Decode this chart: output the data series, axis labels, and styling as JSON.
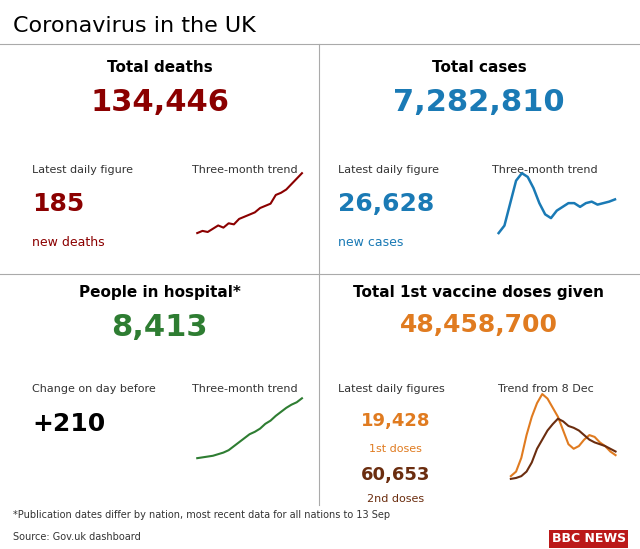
{
  "title": "Coronavirus in the UK",
  "bg_color": "#ffffff",
  "title_color": "#000000",
  "divider_color": "#cccccc",
  "quad_titles": [
    "Total deaths",
    "Total cases",
    "People in hospital*",
    "Total 1st vaccine doses given"
  ],
  "quad_title_color": "#000000",
  "total_deaths": "134,446",
  "total_deaths_color": "#8b0000",
  "total_cases": "7,282,810",
  "total_cases_color": "#1a7ab5",
  "total_hospital": "8,413",
  "total_hospital_color": "#2e7d32",
  "total_vaccine": "48,458,700",
  "total_vaccine_color": "#e07b20",
  "deaths_daily_label": "Latest daily figure",
  "deaths_trend_label": "Three-month trend",
  "deaths_daily_value": "185",
  "deaths_daily_sub": "new deaths",
  "deaths_daily_color": "#8b0000",
  "cases_daily_label": "Latest daily figure",
  "cases_trend_label": "Three-month trend",
  "cases_daily_value": "26,628",
  "cases_daily_sub": "new cases",
  "cases_daily_color": "#1a7ab5",
  "hospital_change_label": "Change on day before",
  "hospital_trend_label": "Three-month trend",
  "hospital_change_value": "+210",
  "hospital_change_color": "#000000",
  "vaccine_daily_label": "Latest daily figures",
  "vaccine_trend_label": "Trend from 8 Dec",
  "vaccine_dose1_value": "19,428",
  "vaccine_dose1_sub": "1st doses",
  "vaccine_dose1_color": "#e07b20",
  "vaccine_dose2_value": "60,653",
  "vaccine_dose2_sub": "2nd doses",
  "vaccine_dose2_color": "#6b2d0f",
  "footnote": "*Publication dates differ by nation, most recent data for all nations to 13 Sep",
  "source": "Source: Gov.uk dashboard",
  "bbc_label": "BBC NEWS",
  "bbc_bg_color": "#bb1919",
  "bbc_text_color": "#ffffff",
  "deaths_trend_x": [
    0,
    1,
    2,
    3,
    4,
    5,
    6,
    7,
    8,
    9,
    10,
    11,
    12,
    13,
    14,
    15,
    16,
    17,
    18,
    19,
    20
  ],
  "deaths_trend_y": [
    0.05,
    0.07,
    0.06,
    0.09,
    0.12,
    0.1,
    0.14,
    0.13,
    0.18,
    0.2,
    0.22,
    0.24,
    0.28,
    0.3,
    0.32,
    0.4,
    0.42,
    0.45,
    0.5,
    0.55,
    0.6
  ],
  "deaths_trend_color": "#8b0000",
  "cases_trend_x": [
    0,
    1,
    2,
    3,
    4,
    5,
    6,
    7,
    8,
    9,
    10,
    11,
    12,
    13,
    14,
    15,
    16,
    17,
    18,
    19,
    20
  ],
  "cases_trend_y": [
    0.1,
    0.2,
    0.5,
    0.8,
    0.9,
    0.85,
    0.7,
    0.5,
    0.35,
    0.3,
    0.4,
    0.45,
    0.5,
    0.5,
    0.45,
    0.5,
    0.52,
    0.48,
    0.5,
    0.52,
    0.55
  ],
  "cases_trend_color": "#1a7ab5",
  "hospital_trend_x": [
    0,
    1,
    2,
    3,
    4,
    5,
    6,
    7,
    8,
    9,
    10,
    11,
    12,
    13,
    14,
    15,
    16,
    17,
    18,
    19,
    20
  ],
  "hospital_trend_y": [
    0.05,
    0.06,
    0.07,
    0.08,
    0.1,
    0.12,
    0.15,
    0.2,
    0.25,
    0.3,
    0.35,
    0.38,
    0.42,
    0.48,
    0.52,
    0.58,
    0.63,
    0.68,
    0.72,
    0.75,
    0.8
  ],
  "hospital_trend_color": "#2e7d32",
  "vaccine_trend1_x": [
    0,
    1,
    2,
    3,
    4,
    5,
    6,
    7,
    8,
    9,
    10,
    11,
    12,
    13,
    14,
    15,
    16,
    17,
    18,
    19,
    20
  ],
  "vaccine_trend1_y": [
    0.05,
    0.1,
    0.25,
    0.5,
    0.7,
    0.85,
    0.95,
    0.9,
    0.8,
    0.7,
    0.55,
    0.4,
    0.35,
    0.38,
    0.45,
    0.5,
    0.48,
    0.42,
    0.38,
    0.32,
    0.28
  ],
  "vaccine_trend1_color": "#e07b20",
  "vaccine_trend2_x": [
    0,
    1,
    2,
    3,
    4,
    5,
    6,
    7,
    8,
    9,
    10,
    11,
    12,
    13,
    14,
    15,
    16,
    17,
    18,
    19,
    20
  ],
  "vaccine_trend2_y": [
    0.02,
    0.03,
    0.05,
    0.1,
    0.2,
    0.35,
    0.45,
    0.55,
    0.62,
    0.68,
    0.65,
    0.6,
    0.58,
    0.55,
    0.5,
    0.45,
    0.42,
    0.4,
    0.38,
    0.35,
    0.32
  ],
  "vaccine_trend2_color": "#6b2d0f"
}
